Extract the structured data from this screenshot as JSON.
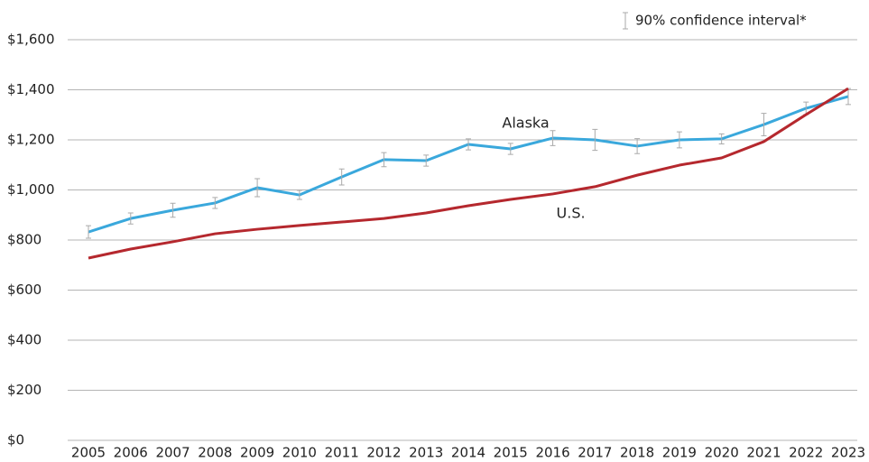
{
  "chart_data": {
    "type": "line",
    "error_legend": "90% confidence interval*",
    "categories": [
      "2005",
      "2006",
      "2007",
      "2008",
      "2009",
      "2010",
      "2011",
      "2012",
      "2013",
      "2014",
      "2015",
      "2016",
      "2017",
      "2018",
      "2019",
      "2020",
      "2021",
      "2022",
      "2023"
    ],
    "series": [
      {
        "name": "Alaska",
        "color": "#3aa8dc",
        "values": [
          832,
          886,
          919,
          948,
          1009,
          980,
          1052,
          1121,
          1117,
          1182,
          1164,
          1207,
          1200,
          1175,
          1200,
          1204,
          1261,
          1326,
          1373
        ],
        "errors": [
          25,
          22,
          28,
          22,
          36,
          18,
          32,
          28,
          22,
          22,
          22,
          30,
          42,
          30,
          32,
          20,
          45,
          25,
          32
        ]
      },
      {
        "name": "U.S.",
        "color": "#b5282e",
        "values": [
          728,
          764,
          793,
          825,
          843,
          858,
          872,
          886,
          908,
          937,
          962,
          984,
          1013,
          1059,
          1099,
          1128,
          1193,
          1301,
          1405
        ]
      }
    ],
    "ylim": [
      0,
      1600
    ],
    "yticks": [
      {
        "value": 0,
        "label": "$0"
      },
      {
        "value": 200,
        "label": "$200"
      },
      {
        "value": 400,
        "label": "$400"
      },
      {
        "value": 600,
        "label": "$600"
      },
      {
        "value": 800,
        "label": "$800"
      },
      {
        "value": 1000,
        "label": "$1,000"
      },
      {
        "value": 1200,
        "label": "$1,200"
      },
      {
        "value": 1400,
        "label": "$1,400"
      },
      {
        "value": 1600,
        "label": "$1,600"
      }
    ],
    "grid": true
  }
}
